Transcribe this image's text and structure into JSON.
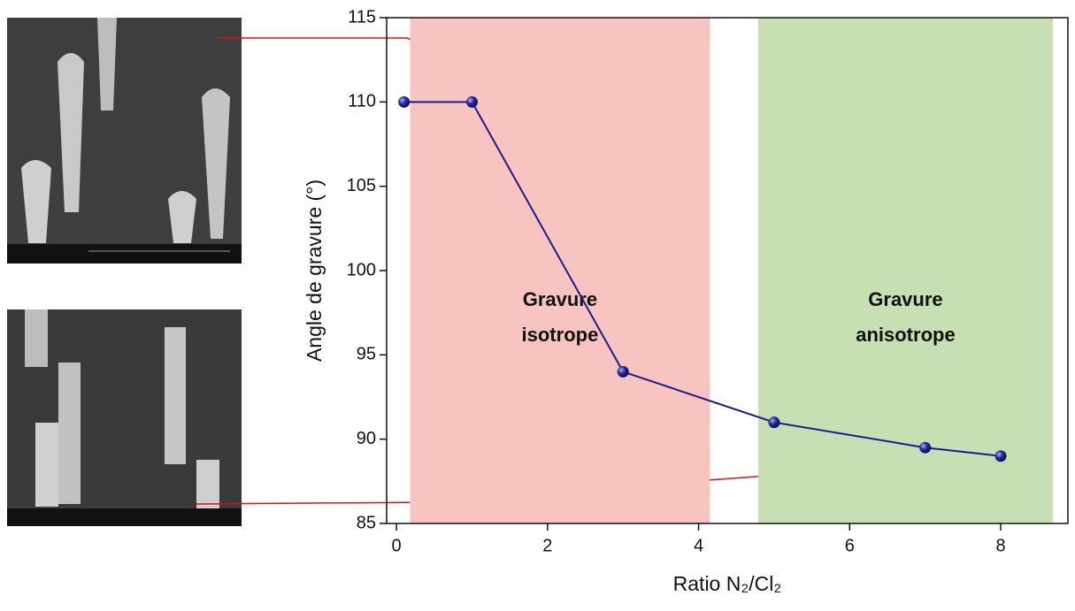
{
  "chart_data": {
    "type": "line",
    "xlabel": "Ratio N₂/Cl₂",
    "ylabel": "Angle de gravure (°)",
    "x": [
      0.1,
      1,
      3,
      5,
      7,
      8
    ],
    "series": [
      {
        "color": "#1c1c8f",
        "values": [
          110,
          110,
          94,
          91,
          89.5,
          89
        ]
      }
    ],
    "xlim": [
      -0.13,
      8.89
    ],
    "xticks": [
      0,
      2,
      4,
      6,
      8
    ],
    "ylim": [
      85,
      115
    ],
    "yticks": [
      85,
      90,
      95,
      100,
      105,
      110,
      115
    ],
    "regions": [
      {
        "xrange": [
          0.18,
          4.15
        ],
        "color": "#f7c4c0",
        "label": [
          "Gravure",
          "isotrope"
        ]
      },
      {
        "xrange": [
          4.79,
          8.69
        ],
        "color": "#c6e0b4",
        "label": [
          "Gravure",
          "anisotrope"
        ]
      }
    ]
  }
}
